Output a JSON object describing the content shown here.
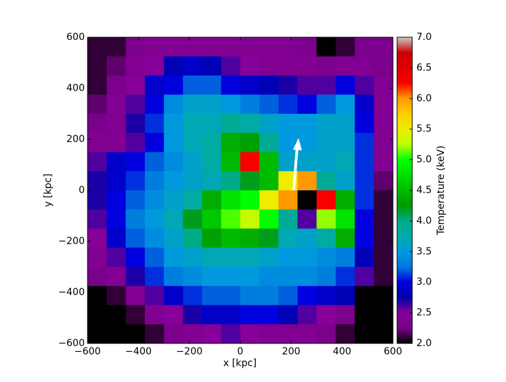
{
  "chart_data": {
    "type": "heatmap",
    "xlabel": "x [kpc]",
    "ylabel": "y [kpc]",
    "colorbar_label": "Temperature (keV)",
    "colormap": "nipy_spectral",
    "xlim": [
      -600,
      600
    ],
    "ylim": [
      -600,
      600
    ],
    "zlim": [
      2,
      7
    ],
    "xticks": [
      {
        "value": -600,
        "label": "−600"
      },
      {
        "value": -400,
        "label": "−400"
      },
      {
        "value": -200,
        "label": "−200"
      },
      0,
      200,
      400,
      600
    ],
    "yticks": [
      {
        "value": -600,
        "label": "−600"
      },
      {
        "value": -400,
        "label": "−400"
      },
      {
        "value": -200,
        "label": "−200"
      },
      0,
      200,
      400,
      600
    ],
    "zticks": [
      {
        "value": 2,
        "label": "2.0"
      },
      2.5,
      {
        "value": 3,
        "label": "3.0"
      },
      3.5,
      {
        "value": 4,
        "label": "4.0"
      },
      4.5,
      {
        "value": 5,
        "label": "5.0"
      },
      5.5,
      {
        "value": 6,
        "label": "6.0"
      },
      6.5,
      {
        "value": 7,
        "label": "7.0"
      }
    ],
    "values": [
      [
        2.1,
        2.1,
        2.3,
        2.4,
        2.4,
        2.4,
        2.4,
        2.4,
        2.4,
        2.4,
        2.4,
        2.3,
        2.0,
        2.1,
        2.3,
        2.3
      ],
      [
        2.1,
        2.2,
        2.4,
        2.5,
        2.8,
        2.9,
        2.8,
        2.6,
        2.5,
        2.4,
        2.4,
        2.4,
        2.3,
        2.4,
        2.4,
        2.3
      ],
      [
        2.1,
        2.3,
        2.5,
        2.9,
        3.0,
        3.2,
        3.2,
        3.0,
        2.9,
        2.8,
        2.7,
        2.6,
        2.6,
        3.0,
        2.6,
        2.4
      ],
      [
        2.2,
        2.4,
        2.6,
        3.0,
        3.4,
        3.6,
        3.6,
        3.5,
        3.3,
        3.2,
        3.1,
        3.0,
        3.2,
        3.5,
        2.9,
        2.4
      ],
      [
        2.3,
        2.4,
        2.7,
        3.1,
        3.5,
        3.7,
        3.7,
        3.9,
        3.8,
        3.6,
        3.5,
        3.5,
        3.6,
        3.6,
        3.0,
        2.4
      ],
      [
        2.4,
        2.4,
        2.6,
        3.0,
        3.5,
        3.7,
        3.8,
        4.4,
        4.3,
        3.9,
        3.5,
        3.5,
        3.6,
        3.6,
        3.1,
        2.4
      ],
      [
        2.6,
        2.9,
        3.0,
        3.2,
        3.4,
        3.6,
        3.8,
        4.5,
        6.3,
        4.5,
        3.6,
        3.6,
        3.6,
        3.7,
        3.1,
        2.4
      ],
      [
        2.7,
        2.9,
        3.1,
        3.3,
        3.5,
        3.6,
        3.7,
        4.0,
        4.2,
        4.5,
        5.5,
        6.0,
        3.9,
        3.6,
        3.1,
        2.2
      ],
      [
        2.7,
        3.0,
        3.2,
        3.4,
        3.6,
        3.8,
        4.4,
        4.8,
        5.0,
        5.5,
        6.0,
        2.0,
        6.3,
        4.4,
        3.1,
        2.1
      ],
      [
        2.6,
        3.0,
        3.3,
        3.5,
        3.7,
        4.2,
        4.6,
        5.1,
        5.3,
        5.0,
        3.9,
        2.6,
        5.2,
        4.8,
        3.0,
        2.1
      ],
      [
        2.5,
        2.9,
        3.2,
        3.4,
        3.6,
        4.0,
        4.3,
        4.5,
        4.4,
        4.2,
        3.7,
        3.6,
        3.8,
        4.4,
        3.0,
        2.1
      ],
      [
        2.4,
        2.6,
        3.0,
        3.2,
        3.5,
        3.6,
        3.7,
        3.7,
        3.7,
        3.6,
        3.5,
        3.5,
        3.4,
        3.3,
        2.8,
        2.1
      ],
      [
        2.3,
        2.4,
        2.7,
        3.1,
        3.3,
        3.4,
        3.5,
        3.5,
        3.5,
        3.4,
        3.4,
        3.4,
        3.3,
        3.1,
        2.6,
        2.1
      ],
      [
        2.0,
        2.1,
        2.4,
        2.6,
        2.9,
        3.1,
        3.2,
        3.2,
        3.3,
        3.3,
        3.2,
        3.0,
        2.9,
        2.8,
        2.0,
        2.0
      ],
      [
        2.0,
        2.0,
        2.1,
        2.4,
        2.5,
        2.7,
        2.9,
        2.9,
        3.0,
        3.0,
        2.8,
        2.6,
        2.5,
        2.3,
        2.0,
        2.0
      ],
      [
        2.0,
        2.0,
        2.0,
        2.1,
        2.3,
        2.4,
        2.5,
        2.6,
        2.5,
        2.4,
        2.4,
        2.4,
        2.3,
        2.1,
        2.0,
        2.0
      ]
    ]
  }
}
